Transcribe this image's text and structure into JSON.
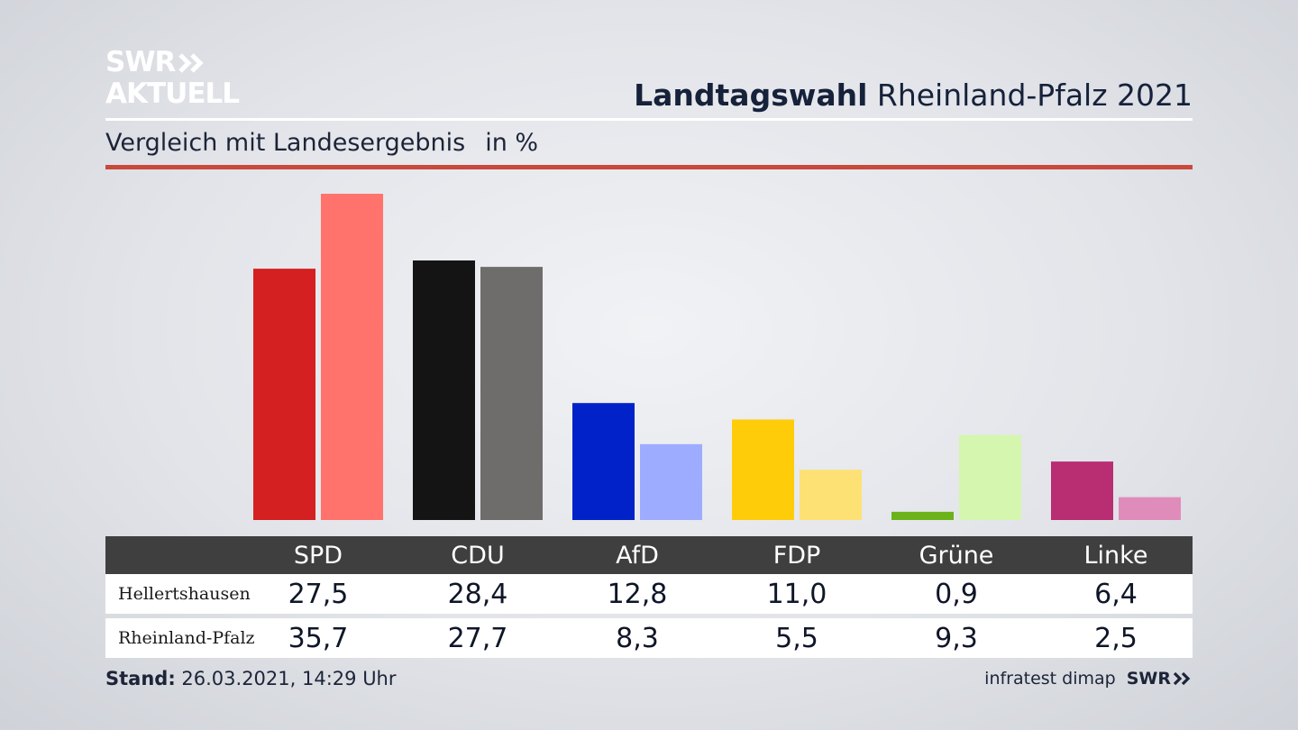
{
  "logo": {
    "line1": "SWR",
    "line2": "AKTUELL"
  },
  "headline": {
    "bold": "Landtagswahl",
    "rest": "Rheinland-Pfalz 2021"
  },
  "subtitle": {
    "text": "Vergleich mit Landesergebnis",
    "unit": "in %"
  },
  "chart_data": {
    "type": "bar",
    "title": "Landtagswahl Rheinland-Pfalz 2021",
    "subtitle": "Vergleich mit Landesergebnis in %",
    "categories": [
      "SPD",
      "CDU",
      "AfD",
      "FDP",
      "Grüne",
      "Linke"
    ],
    "series": [
      {
        "name": "Hellertshausen",
        "values": [
          27.5,
          28.4,
          12.8,
          11.0,
          0.9,
          6.4
        ],
        "labels": [
          "27,5",
          "28,4",
          "12,8",
          "11,0",
          "0,9",
          "6,4"
        ],
        "colors": [
          "#d42020",
          "#141414",
          "#0022c8",
          "#ffcc0a",
          "#6cb21a",
          "#b92d73"
        ]
      },
      {
        "name": "Rheinland-Pfalz",
        "values": [
          35.7,
          27.7,
          8.3,
          5.5,
          9.3,
          2.5
        ],
        "labels": [
          "35,7",
          "27,7",
          "8,3",
          "5,5",
          "9,3",
          "2,5"
        ],
        "colors": [
          "#ff736c",
          "#6e6d6b",
          "#9eacff",
          "#fde175",
          "#d5f6ae",
          "#e08cba"
        ]
      }
    ],
    "ylim": [
      0,
      35.7
    ]
  },
  "footer": {
    "stand_label": "Stand:",
    "stand_value": "26.03.2021, 14:29 Uhr",
    "source": "infratest dimap",
    "brand": "SWR"
  }
}
